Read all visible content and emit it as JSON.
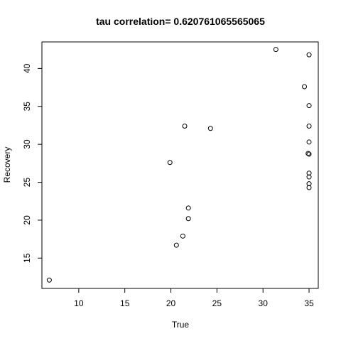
{
  "chart_data": {
    "type": "scatter",
    "title": "tau correlation= 0.620761065565065",
    "xlabel": "True",
    "ylabel": "Recovery",
    "xlim": [
      6.0,
      36.0
    ],
    "ylim": [
      11.0,
      43.5
    ],
    "xticks": [
      10,
      15,
      20,
      25,
      30,
      35
    ],
    "yticks": [
      15,
      20,
      25,
      30,
      35,
      40
    ],
    "grid": false,
    "points": [
      {
        "x": 6.8,
        "y": 12.1
      },
      {
        "x": 19.9,
        "y": 27.6
      },
      {
        "x": 20.6,
        "y": 16.7
      },
      {
        "x": 21.3,
        "y": 17.9
      },
      {
        "x": 21.5,
        "y": 32.4
      },
      {
        "x": 21.9,
        "y": 21.6
      },
      {
        "x": 21.9,
        "y": 20.2
      },
      {
        "x": 24.3,
        "y": 32.1
      },
      {
        "x": 31.4,
        "y": 42.5
      },
      {
        "x": 34.5,
        "y": 37.6
      },
      {
        "x": 34.9,
        "y": 28.8
      },
      {
        "x": 35.0,
        "y": 41.8
      },
      {
        "x": 35.0,
        "y": 35.1
      },
      {
        "x": 35.0,
        "y": 32.4
      },
      {
        "x": 35.0,
        "y": 30.3
      },
      {
        "x": 35.0,
        "y": 28.7
      },
      {
        "x": 35.0,
        "y": 26.2
      },
      {
        "x": 35.0,
        "y": 25.7
      },
      {
        "x": 35.0,
        "y": 24.8
      },
      {
        "x": 35.0,
        "y": 24.3
      }
    ]
  }
}
